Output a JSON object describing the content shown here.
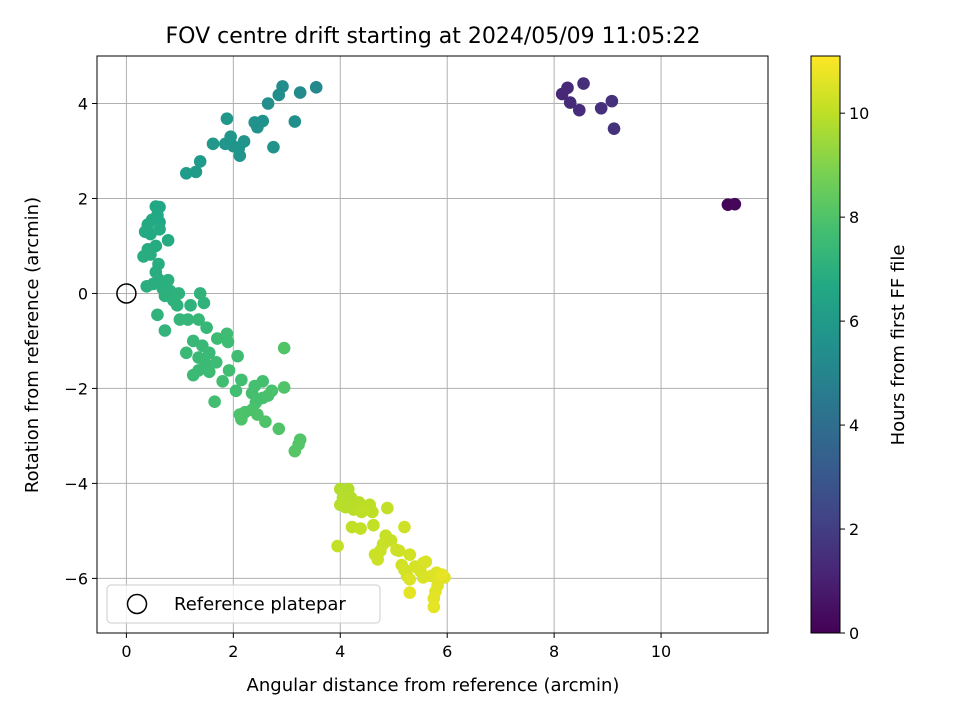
{
  "chart_data": {
    "type": "scatter",
    "title": "FOV centre drift starting at 2024/05/09 11:05:22",
    "xlabel": "Angular distance from reference (arcmin)",
    "ylabel": "Rotation from reference (arcmin)",
    "xlim": [
      -0.55,
      12.0
    ],
    "ylim": [
      -7.15,
      5.0
    ],
    "xticks": [
      0,
      2,
      4,
      6,
      8,
      10
    ],
    "yticks": [
      -6,
      -4,
      -2,
      0,
      2,
      4
    ],
    "xtick_labels": [
      "0",
      "2",
      "4",
      "6",
      "8",
      "10"
    ],
    "ytick_labels": [
      "−6",
      "−4",
      "−2",
      "0",
      "2",
      "4"
    ],
    "grid": true,
    "colormap": "viridis",
    "colorbar": {
      "label": "Hours from first FF file",
      "range": [
        0,
        11.1
      ],
      "ticks": [
        0,
        2,
        4,
        6,
        8,
        10
      ],
      "tick_labels": [
        "0",
        "2",
        "4",
        "6",
        "8",
        "10"
      ]
    },
    "legend": {
      "position": "lower-left",
      "entries": [
        "Reference platepar"
      ]
    },
    "reference_point": {
      "x": 0,
      "y": 0
    },
    "points": [
      {
        "x": 11.25,
        "y": 1.87,
        "t": 0.1
      },
      {
        "x": 11.38,
        "y": 1.88,
        "t": 0.2
      },
      {
        "x": 8.15,
        "y": 4.2,
        "t": 1.2
      },
      {
        "x": 8.25,
        "y": 4.33,
        "t": 1.3
      },
      {
        "x": 8.3,
        "y": 4.02,
        "t": 1.35
      },
      {
        "x": 8.47,
        "y": 3.86,
        "t": 1.4
      },
      {
        "x": 8.55,
        "y": 4.42,
        "t": 1.45
      },
      {
        "x": 8.88,
        "y": 3.9,
        "t": 1.5
      },
      {
        "x": 9.08,
        "y": 4.05,
        "t": 1.55
      },
      {
        "x": 9.12,
        "y": 3.47,
        "t": 1.6
      },
      {
        "x": 3.55,
        "y": 4.34,
        "t": 5.2
      },
      {
        "x": 3.25,
        "y": 4.23,
        "t": 5.3
      },
      {
        "x": 2.92,
        "y": 4.36,
        "t": 5.35
      },
      {
        "x": 2.85,
        "y": 4.18,
        "t": 5.4
      },
      {
        "x": 2.65,
        "y": 4.0,
        "t": 5.45
      },
      {
        "x": 3.15,
        "y": 3.62,
        "t": 5.5
      },
      {
        "x": 2.55,
        "y": 3.63,
        "t": 5.55
      },
      {
        "x": 2.4,
        "y": 3.6,
        "t": 5.6
      },
      {
        "x": 2.45,
        "y": 3.5,
        "t": 5.62
      },
      {
        "x": 2.75,
        "y": 3.08,
        "t": 5.65
      },
      {
        "x": 2.2,
        "y": 3.2,
        "t": 5.7
      },
      {
        "x": 2.1,
        "y": 3.05,
        "t": 5.72
      },
      {
        "x": 2.12,
        "y": 2.9,
        "t": 5.74
      },
      {
        "x": 2.0,
        "y": 3.1,
        "t": 5.76
      },
      {
        "x": 1.95,
        "y": 3.3,
        "t": 5.78
      },
      {
        "x": 1.85,
        "y": 3.15,
        "t": 5.8
      },
      {
        "x": 1.88,
        "y": 3.68,
        "t": 5.85
      },
      {
        "x": 1.62,
        "y": 3.15,
        "t": 5.9
      },
      {
        "x": 1.38,
        "y": 2.78,
        "t": 6.0
      },
      {
        "x": 1.3,
        "y": 2.56,
        "t": 6.05
      },
      {
        "x": 1.12,
        "y": 2.53,
        "t": 6.1
      },
      {
        "x": 0.55,
        "y": 1.83,
        "t": 6.6
      },
      {
        "x": 0.62,
        "y": 1.82,
        "t": 6.62
      },
      {
        "x": 0.58,
        "y": 1.65,
        "t": 6.64
      },
      {
        "x": 0.62,
        "y": 1.5,
        "t": 6.66
      },
      {
        "x": 0.48,
        "y": 1.55,
        "t": 6.68
      },
      {
        "x": 0.4,
        "y": 1.45,
        "t": 6.7
      },
      {
        "x": 0.35,
        "y": 1.3,
        "t": 6.72
      },
      {
        "x": 0.45,
        "y": 1.25,
        "t": 6.74
      },
      {
        "x": 0.62,
        "y": 1.35,
        "t": 6.76
      },
      {
        "x": 0.78,
        "y": 1.12,
        "t": 6.78
      },
      {
        "x": 0.55,
        "y": 1.0,
        "t": 6.8
      },
      {
        "x": 0.4,
        "y": 0.93,
        "t": 6.82
      },
      {
        "x": 0.32,
        "y": 0.78,
        "t": 6.84
      },
      {
        "x": 0.45,
        "y": 0.82,
        "t": 6.86
      },
      {
        "x": 0.6,
        "y": 0.62,
        "t": 6.88
      },
      {
        "x": 0.55,
        "y": 0.45,
        "t": 6.9
      },
      {
        "x": 0.6,
        "y": 0.3,
        "t": 6.92
      },
      {
        "x": 0.5,
        "y": 0.2,
        "t": 6.94
      },
      {
        "x": 0.38,
        "y": 0.15,
        "t": 6.96
      },
      {
        "x": 0.68,
        "y": 0.1,
        "t": 6.98
      },
      {
        "x": 0.78,
        "y": 0.28,
        "t": 7.0
      },
      {
        "x": 0.82,
        "y": 0.05,
        "t": 7.02
      },
      {
        "x": 0.72,
        "y": -0.05,
        "t": 7.04
      },
      {
        "x": 0.88,
        "y": -0.15,
        "t": 7.06
      },
      {
        "x": 0.95,
        "y": -0.25,
        "t": 7.08
      },
      {
        "x": 0.98,
        "y": 0.0,
        "t": 7.1
      },
      {
        "x": 1.2,
        "y": -0.25,
        "t": 7.12
      },
      {
        "x": 1.38,
        "y": 0.0,
        "t": 7.14
      },
      {
        "x": 1.45,
        "y": -0.2,
        "t": 7.16
      },
      {
        "x": 0.58,
        "y": -0.45,
        "t": 7.18
      },
      {
        "x": 0.72,
        "y": -0.78,
        "t": 7.2
      },
      {
        "x": 1.0,
        "y": -0.55,
        "t": 7.3
      },
      {
        "x": 1.15,
        "y": -0.55,
        "t": 7.32
      },
      {
        "x": 1.35,
        "y": -0.55,
        "t": 7.34
      },
      {
        "x": 1.5,
        "y": -0.72,
        "t": 7.36
      },
      {
        "x": 1.25,
        "y": -1.0,
        "t": 7.38
      },
      {
        "x": 1.42,
        "y": -1.1,
        "t": 7.4
      },
      {
        "x": 1.12,
        "y": -1.25,
        "t": 7.42
      },
      {
        "x": 1.35,
        "y": -1.35,
        "t": 7.44
      },
      {
        "x": 1.55,
        "y": -1.25,
        "t": 7.46
      },
      {
        "x": 1.48,
        "y": -1.48,
        "t": 7.48
      },
      {
        "x": 1.35,
        "y": -1.62,
        "t": 7.5
      },
      {
        "x": 1.25,
        "y": -1.72,
        "t": 7.52
      },
      {
        "x": 1.55,
        "y": -1.65,
        "t": 7.54
      },
      {
        "x": 1.68,
        "y": -1.45,
        "t": 7.56
      },
      {
        "x": 1.7,
        "y": -0.95,
        "t": 7.58
      },
      {
        "x": 1.88,
        "y": -0.85,
        "t": 7.6
      },
      {
        "x": 1.9,
        "y": -1.02,
        "t": 7.62
      },
      {
        "x": 2.08,
        "y": -1.32,
        "t": 7.64
      },
      {
        "x": 1.92,
        "y": -1.62,
        "t": 7.66
      },
      {
        "x": 1.8,
        "y": -1.85,
        "t": 7.68
      },
      {
        "x": 2.15,
        "y": -1.82,
        "t": 7.7
      },
      {
        "x": 2.05,
        "y": -2.05,
        "t": 7.72
      },
      {
        "x": 1.65,
        "y": -2.28,
        "t": 7.74
      },
      {
        "x": 2.4,
        "y": -1.95,
        "t": 7.76
      },
      {
        "x": 2.55,
        "y": -1.85,
        "t": 7.78
      },
      {
        "x": 2.35,
        "y": -2.1,
        "t": 7.8
      },
      {
        "x": 2.42,
        "y": -2.3,
        "t": 7.82
      },
      {
        "x": 2.55,
        "y": -2.2,
        "t": 7.84
      },
      {
        "x": 2.65,
        "y": -2.15,
        "t": 7.86
      },
      {
        "x": 2.72,
        "y": -2.05,
        "t": 7.88
      },
      {
        "x": 2.35,
        "y": -2.45,
        "t": 7.9
      },
      {
        "x": 2.22,
        "y": -2.5,
        "t": 7.92
      },
      {
        "x": 2.12,
        "y": -2.55,
        "t": 7.94
      },
      {
        "x": 2.15,
        "y": -2.65,
        "t": 7.96
      },
      {
        "x": 2.45,
        "y": -2.55,
        "t": 7.98
      },
      {
        "x": 2.6,
        "y": -2.7,
        "t": 8.0
      },
      {
        "x": 2.85,
        "y": -2.85,
        "t": 8.02
      },
      {
        "x": 2.95,
        "y": -1.98,
        "t": 8.04
      },
      {
        "x": 2.95,
        "y": -1.15,
        "t": 8.06
      },
      {
        "x": 3.25,
        "y": -3.08,
        "t": 8.08
      },
      {
        "x": 3.22,
        "y": -3.18,
        "t": 8.1
      },
      {
        "x": 3.15,
        "y": -3.32,
        "t": 8.12
      },
      {
        "x": 4.0,
        "y": -4.12,
        "t": 9.8
      },
      {
        "x": 4.15,
        "y": -4.12,
        "t": 9.82
      },
      {
        "x": 4.05,
        "y": -4.3,
        "t": 9.84
      },
      {
        "x": 4.2,
        "y": -4.3,
        "t": 9.86
      },
      {
        "x": 4.0,
        "y": -4.45,
        "t": 9.88
      },
      {
        "x": 4.1,
        "y": -4.5,
        "t": 9.9
      },
      {
        "x": 4.25,
        "y": -4.55,
        "t": 9.92
      },
      {
        "x": 4.35,
        "y": -4.4,
        "t": 9.94
      },
      {
        "x": 4.45,
        "y": -4.5,
        "t": 9.96
      },
      {
        "x": 4.55,
        "y": -4.45,
        "t": 9.98
      },
      {
        "x": 4.6,
        "y": -4.6,
        "t": 10.0
      },
      {
        "x": 4.4,
        "y": -4.6,
        "t": 10.02
      },
      {
        "x": 4.22,
        "y": -4.92,
        "t": 10.04
      },
      {
        "x": 4.38,
        "y": -4.95,
        "t": 10.06
      },
      {
        "x": 4.62,
        "y": -4.88,
        "t": 10.08
      },
      {
        "x": 4.88,
        "y": -4.52,
        "t": 10.1
      },
      {
        "x": 3.95,
        "y": -5.32,
        "t": 10.12
      },
      {
        "x": 4.85,
        "y": -5.1,
        "t": 10.14
      },
      {
        "x": 4.95,
        "y": -5.2,
        "t": 10.16
      },
      {
        "x": 4.8,
        "y": -5.28,
        "t": 10.18
      },
      {
        "x": 4.75,
        "y": -5.42,
        "t": 10.2
      },
      {
        "x": 4.65,
        "y": -5.5,
        "t": 10.22
      },
      {
        "x": 4.7,
        "y": -5.6,
        "t": 10.24
      },
      {
        "x": 5.05,
        "y": -5.4,
        "t": 10.26
      },
      {
        "x": 5.1,
        "y": -5.42,
        "t": 10.28
      },
      {
        "x": 5.2,
        "y": -4.92,
        "t": 10.3
      },
      {
        "x": 5.3,
        "y": -5.5,
        "t": 10.32
      },
      {
        "x": 5.15,
        "y": -5.72,
        "t": 10.34
      },
      {
        "x": 5.2,
        "y": -5.82,
        "t": 10.36
      },
      {
        "x": 5.25,
        "y": -5.95,
        "t": 10.38
      },
      {
        "x": 5.4,
        "y": -5.75,
        "t": 10.4
      },
      {
        "x": 5.5,
        "y": -5.85,
        "t": 10.42
      },
      {
        "x": 5.55,
        "y": -5.68,
        "t": 10.44
      },
      {
        "x": 5.6,
        "y": -5.65,
        "t": 10.46
      },
      {
        "x": 5.55,
        "y": -5.98,
        "t": 10.48
      },
      {
        "x": 5.3,
        "y": -6.02,
        "t": 10.5
      },
      {
        "x": 5.7,
        "y": -5.95,
        "t": 10.52
      },
      {
        "x": 5.8,
        "y": -5.88,
        "t": 10.54
      },
      {
        "x": 5.85,
        "y": -6.0,
        "t": 10.56
      },
      {
        "x": 5.95,
        "y": -5.98,
        "t": 10.58
      },
      {
        "x": 5.82,
        "y": -6.15,
        "t": 10.6
      },
      {
        "x": 5.78,
        "y": -6.28,
        "t": 10.62
      },
      {
        "x": 5.75,
        "y": -6.42,
        "t": 10.64
      },
      {
        "x": 5.3,
        "y": -6.3,
        "t": 10.66
      },
      {
        "x": 5.75,
        "y": -6.6,
        "t": 10.68
      },
      {
        "x": 5.9,
        "y": -5.92,
        "t": 10.7
      }
    ]
  }
}
